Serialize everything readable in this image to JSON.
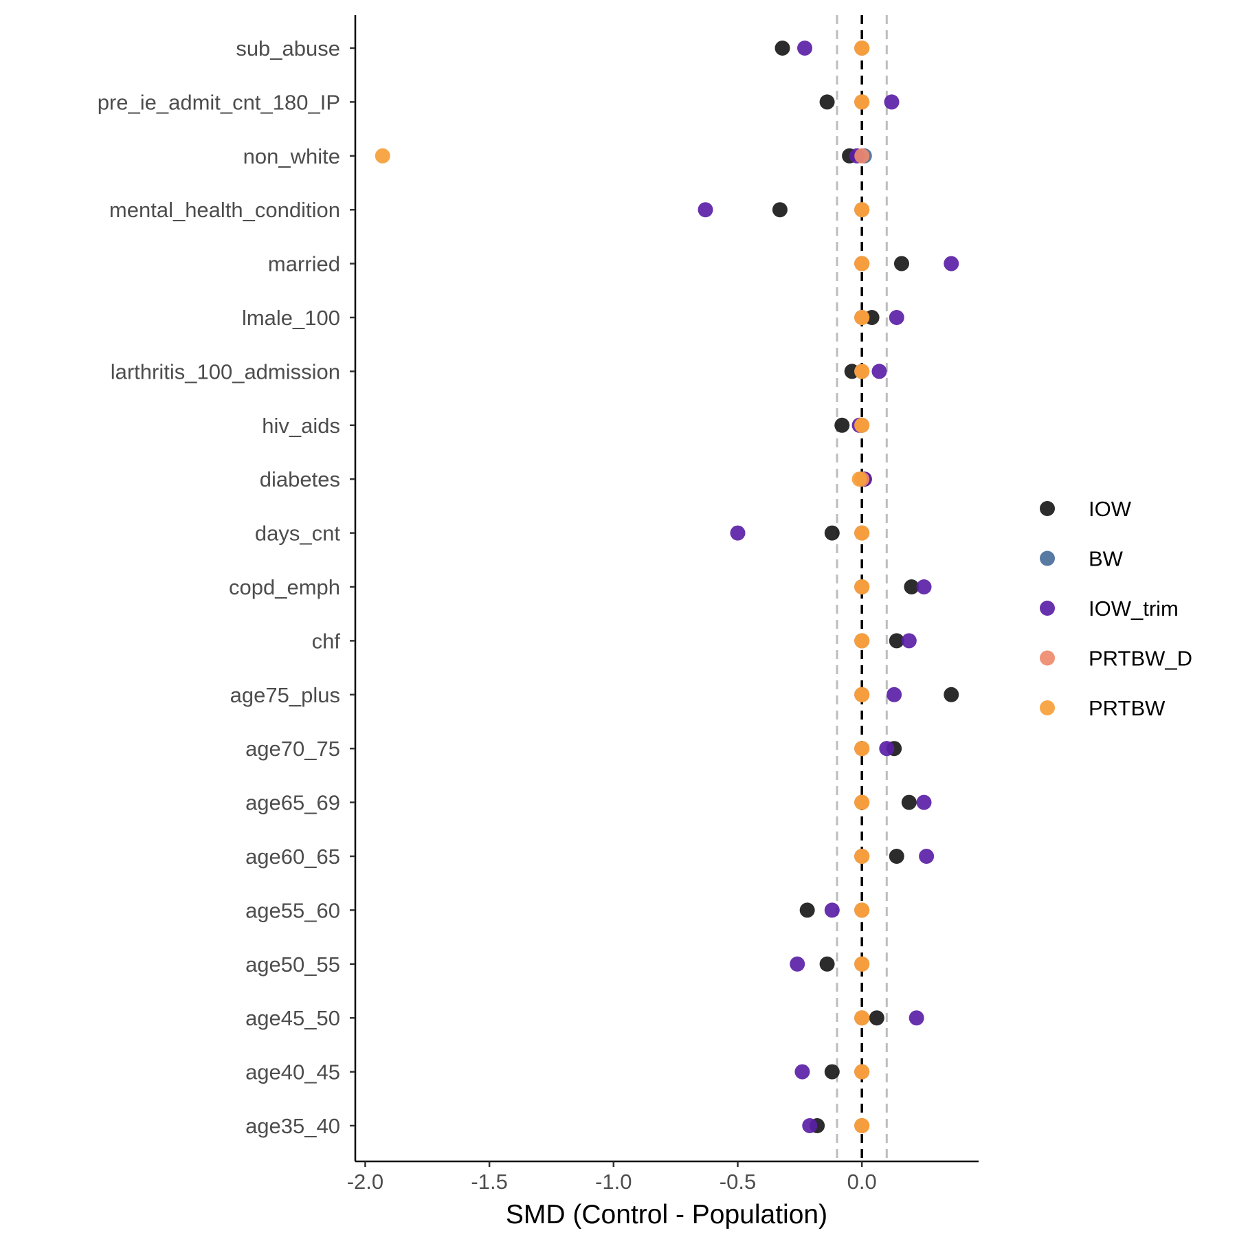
{
  "chart_data": {
    "type": "scatter",
    "title": "",
    "xlabel": "SMD (Control - Population)",
    "ylabel": "",
    "xlim": [
      -2.04,
      0.47
    ],
    "x_ticks": [
      -2.0,
      -1.5,
      -1.0,
      -0.5,
      0.0
    ],
    "x_tick_labels": [
      "-2.0",
      "-1.5",
      "-1.0",
      "-0.5",
      "0.0"
    ],
    "reference_lines": {
      "solid_dashed": 0.0,
      "light_dashed": [
        -0.1,
        0.1
      ]
    },
    "legend_position": "right",
    "categories": [
      "sub_abuse",
      "pre_ie_admit_cnt_180_IP",
      "non_white",
      "mental_health_condition",
      "married",
      "lmale_100",
      "larthritis_100_admission",
      "hiv_aids",
      "diabetes",
      "days_cnt",
      "copd_emph",
      "chf",
      "age75_plus",
      "age70_75",
      "age65_69",
      "age60_65",
      "age55_60",
      "age50_55",
      "age45_50",
      "age40_45",
      "age35_40"
    ],
    "series": [
      {
        "name": "IOW",
        "color": "#1a1a1a",
        "values": [
          -0.32,
          -0.14,
          -0.05,
          -0.33,
          0.16,
          0.04,
          -0.04,
          -0.08,
          0.01,
          -0.12,
          0.2,
          0.14,
          0.36,
          0.13,
          0.19,
          0.14,
          -0.22,
          -0.14,
          0.06,
          -0.12,
          -0.18
        ]
      },
      {
        "name": "BW",
        "color": "#4a6f9a",
        "values": [
          0.0,
          0.0,
          0.01,
          0.0,
          0.0,
          0.0,
          0.0,
          0.0,
          0.0,
          0.0,
          0.0,
          0.0,
          0.0,
          0.0,
          0.0,
          0.0,
          0.0,
          0.0,
          0.0,
          0.0,
          0.0
        ]
      },
      {
        "name": "IOW_trim",
        "color": "#5b1fa6",
        "values": [
          -0.23,
          0.12,
          -0.02,
          -0.63,
          0.36,
          0.14,
          0.07,
          -0.01,
          0.01,
          -0.5,
          0.25,
          0.19,
          0.13,
          0.1,
          0.25,
          0.26,
          -0.12,
          -0.26,
          0.22,
          -0.24,
          -0.21
        ]
      },
      {
        "name": "PRTBW_D",
        "color": "#ee8a6e",
        "values": [
          0.0,
          0.0,
          0.0,
          0.0,
          0.0,
          0.0,
          0.0,
          0.0,
          0.0,
          0.0,
          0.0,
          0.0,
          0.0,
          0.0,
          0.0,
          0.0,
          0.0,
          0.0,
          0.0,
          0.0,
          0.0
        ]
      },
      {
        "name": "PRTBW",
        "color": "#f7a038",
        "values": [
          0.0,
          0.0,
          -1.93,
          0.0,
          0.0,
          0.0,
          0.0,
          0.0,
          -0.01,
          0.0,
          0.0,
          0.0,
          0.0,
          0.0,
          0.0,
          0.0,
          0.0,
          0.0,
          0.0,
          0.0,
          0.0
        ]
      }
    ]
  }
}
